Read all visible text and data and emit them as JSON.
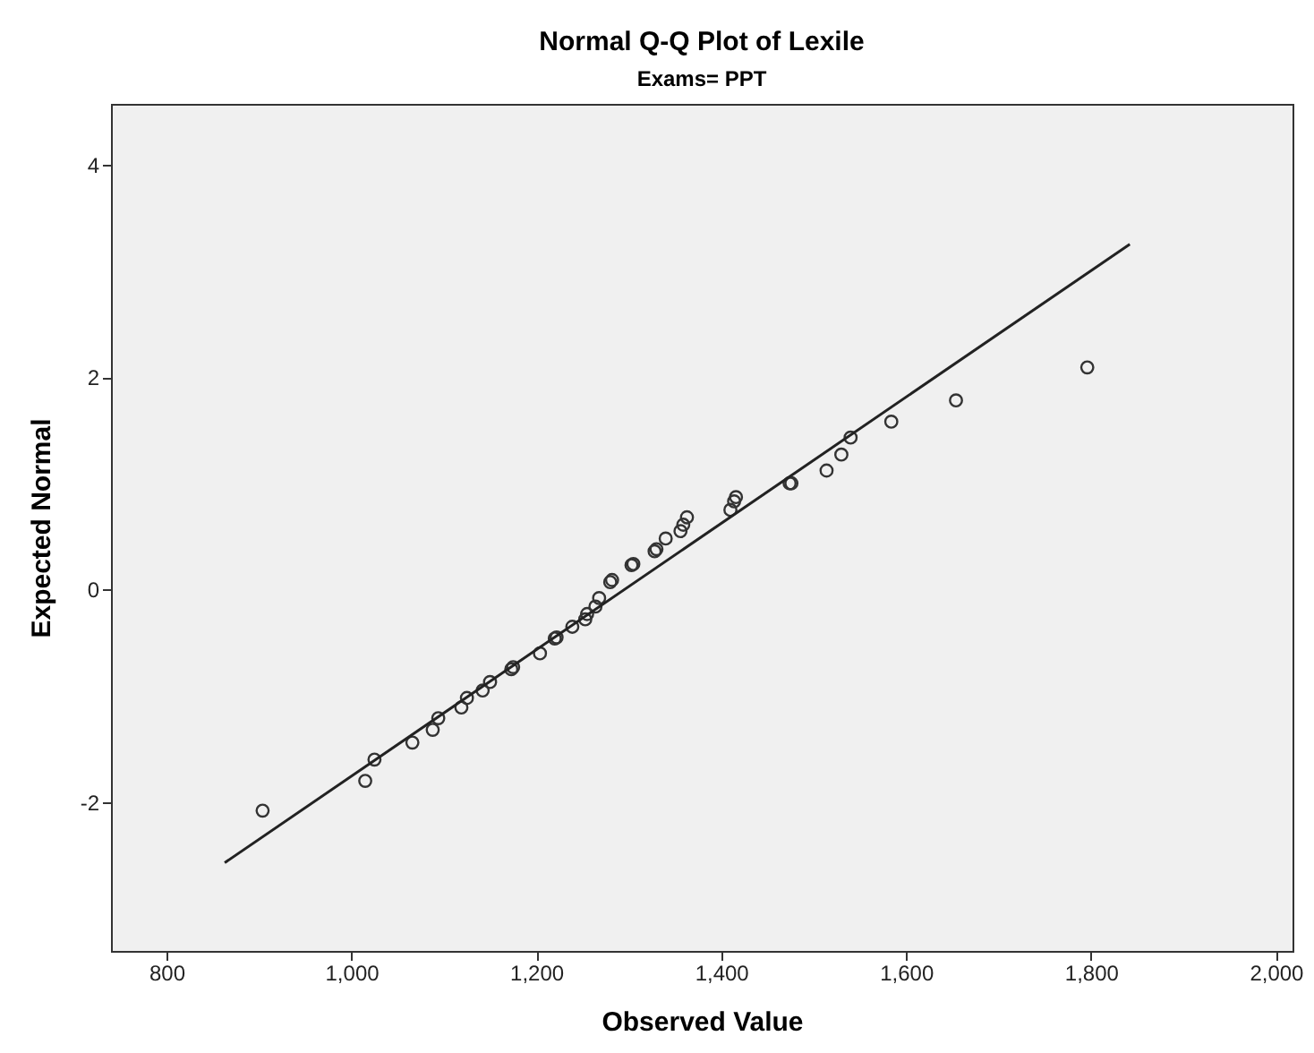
{
  "chart_data": {
    "type": "scatter",
    "title": "Normal Q-Q Plot of Lexile",
    "subtitle": "Exams= PPT",
    "xlabel": "Observed Value",
    "ylabel": "Expected Normal",
    "xlim": [
      740,
      2018
    ],
    "ylim": [
      -3.4,
      4.57
    ],
    "xticks": [
      800,
      {
        "value": 1000,
        "label": "1,000"
      },
      {
        "value": 1200,
        "label": "1,200"
      },
      {
        "value": 1400,
        "label": "1,400"
      },
      {
        "value": 1600,
        "label": "1,600"
      },
      {
        "value": 1800,
        "label": "1,800"
      },
      {
        "value": 2000,
        "label": "2,000"
      }
    ],
    "yticks": [
      -2,
      0,
      2,
      4
    ],
    "marker": "circle",
    "series": [
      {
        "type": "scatter",
        "color": "#333333",
        "x": [
          904,
          1015,
          1025,
          1066,
          1088,
          1094,
          1119,
          1125,
          1142,
          1150,
          1173,
          1175,
          1204,
          1220,
          1222,
          1239,
          1253,
          1255,
          1264,
          1268,
          1280,
          1282,
          1303,
          1305,
          1328,
          1330,
          1340,
          1356,
          1359,
          1363,
          1410,
          1414,
          1416,
          1474,
          1476,
          1514,
          1530,
          1540,
          1584,
          1654,
          1796
        ],
        "values": [
          -2.08,
          -1.8,
          -1.6,
          -1.44,
          -1.32,
          -1.21,
          -1.11,
          -1.02,
          -0.95,
          -0.87,
          -0.75,
          -0.73,
          -0.6,
          -0.46,
          -0.45,
          -0.35,
          -0.28,
          -0.23,
          -0.16,
          -0.08,
          0.07,
          0.09,
          0.23,
          0.24,
          0.36,
          0.38,
          0.48,
          0.55,
          0.61,
          0.68,
          0.75,
          0.83,
          0.87,
          1.0,
          1.0,
          1.12,
          1.27,
          1.43,
          1.58,
          1.78,
          2.09
        ]
      },
      {
        "type": "line",
        "marker": "none",
        "color": "#222222",
        "x": [
          863,
          1842
        ],
        "values": [
          -2.57,
          3.25
        ]
      }
    ]
  }
}
